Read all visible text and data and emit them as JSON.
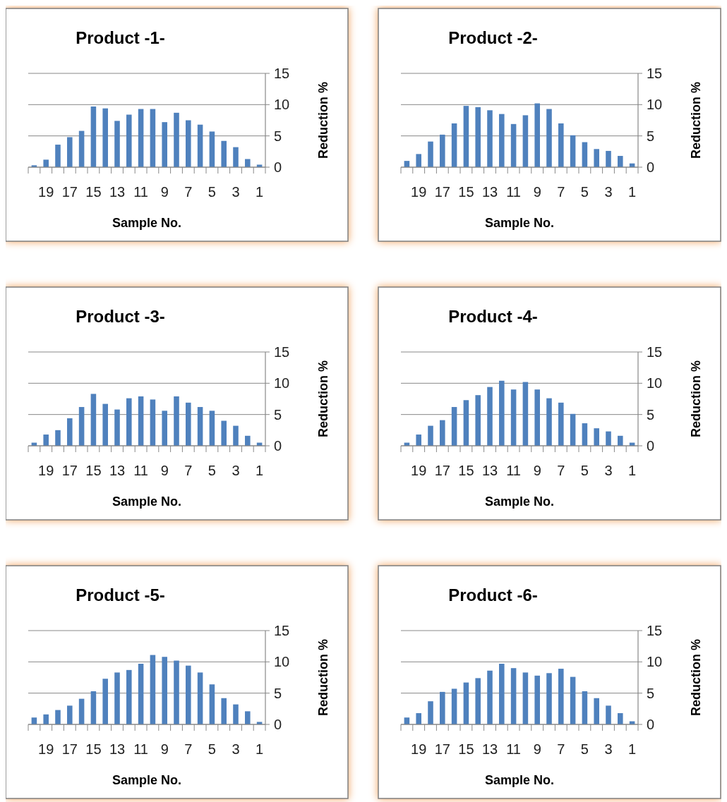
{
  "chart_data": [
    {
      "type": "bar",
      "title": "Product -1-",
      "xlabel": "Sample No.",
      "ylabel": "Reduction %",
      "categories": [
        null,
        "19",
        null,
        "17",
        null,
        "15",
        null,
        "13",
        null,
        "11",
        null,
        "9",
        null,
        "7",
        null,
        "5",
        null,
        "3",
        null,
        "1"
      ],
      "values": [
        0.3,
        1.2,
        3.6,
        4.8,
        5.8,
        9.7,
        9.4,
        7.4,
        8.4,
        9.3,
        9.3,
        7.2,
        8.7,
        7.5,
        6.8,
        5.7,
        4.2,
        3.2,
        1.3,
        0.4
      ],
      "color": "#4f81bd",
      "ylim": [
        0,
        15
      ],
      "yticks": [
        0,
        5,
        10,
        15
      ],
      "grid": "y"
    },
    {
      "type": "bar",
      "title": "Product -2-",
      "xlabel": "Sample No.",
      "ylabel": "Reduction %",
      "categories": [
        null,
        "19",
        null,
        "17",
        null,
        "15",
        null,
        "13",
        null,
        "11",
        null,
        "9",
        null,
        "7",
        null,
        "5",
        null,
        "3",
        null,
        "1"
      ],
      "values": [
        1.0,
        2.1,
        4.1,
        5.2,
        7.0,
        9.8,
        9.6,
        9.1,
        8.5,
        6.9,
        8.3,
        10.2,
        9.3,
        7.0,
        5.1,
        4.0,
        2.9,
        2.6,
        1.8,
        0.6
      ],
      "color": "#4f81bd",
      "ylim": [
        0,
        15
      ],
      "yticks": [
        0,
        5,
        10,
        15
      ],
      "grid": "y"
    },
    {
      "type": "bar",
      "title": "Product -3-",
      "xlabel": "Sample No.",
      "ylabel": "Reduction %",
      "categories": [
        null,
        "19",
        null,
        "17",
        null,
        "15",
        null,
        "13",
        null,
        "11",
        null,
        "9",
        null,
        "7",
        null,
        "5",
        null,
        "3",
        null,
        "1"
      ],
      "values": [
        0.5,
        1.8,
        2.5,
        4.4,
        6.2,
        8.3,
        6.7,
        5.8,
        7.6,
        7.9,
        7.4,
        5.6,
        7.9,
        6.9,
        6.2,
        5.6,
        4.0,
        3.2,
        1.6,
        0.5
      ],
      "color": "#4f81bd",
      "ylim": [
        0,
        15
      ],
      "yticks": [
        0,
        5,
        10,
        15
      ],
      "grid": "y"
    },
    {
      "type": "bar",
      "title": "Product -4-",
      "xlabel": "Sample No.",
      "ylabel": "Reduction %",
      "categories": [
        null,
        "19",
        null,
        "17",
        null,
        "15",
        null,
        "13",
        null,
        "11",
        null,
        "9",
        null,
        "7",
        null,
        "5",
        null,
        "3",
        null,
        "1"
      ],
      "values": [
        0.5,
        1.8,
        3.2,
        4.1,
        6.2,
        7.3,
        8.1,
        9.4,
        10.4,
        9.0,
        10.2,
        9.0,
        7.6,
        6.9,
        5.1,
        3.6,
        2.8,
        2.3,
        1.6,
        0.5
      ],
      "color": "#4f81bd",
      "ylim": [
        0,
        15
      ],
      "yticks": [
        0,
        5,
        10,
        15
      ],
      "grid": "y"
    },
    {
      "type": "bar",
      "title": "Product -5-",
      "xlabel": "Sample No.",
      "ylabel": "Reduction %",
      "categories": [
        null,
        "19",
        null,
        "17",
        null,
        "15",
        null,
        "13",
        null,
        "11",
        null,
        "9",
        null,
        "7",
        null,
        "5",
        null,
        "3",
        null,
        "1"
      ],
      "values": [
        1.1,
        1.6,
        2.3,
        3.0,
        4.1,
        5.3,
        7.3,
        8.3,
        8.7,
        9.7,
        11.1,
        10.8,
        10.2,
        9.4,
        8.3,
        6.4,
        4.2,
        3.2,
        2.1,
        0.4
      ],
      "color": "#4f81bd",
      "ylim": [
        0,
        15
      ],
      "yticks": [
        0,
        5,
        10,
        15
      ],
      "grid": "y"
    },
    {
      "type": "bar",
      "title": "Product -6-",
      "xlabel": "Sample No.",
      "ylabel": "Reduction %",
      "categories": [
        null,
        "19",
        null,
        "17",
        null,
        "15",
        null,
        "13",
        null,
        "11",
        null,
        "9",
        null,
        "7",
        null,
        "5",
        null,
        "3",
        null,
        "1"
      ],
      "values": [
        1.1,
        1.8,
        3.7,
        5.2,
        5.7,
        6.7,
        7.4,
        8.6,
        9.7,
        9.0,
        8.3,
        7.8,
        8.2,
        8.9,
        7.6,
        5.3,
        4.2,
        3.0,
        1.8,
        0.5
      ],
      "color": "#4f81bd",
      "ylim": [
        0,
        15
      ],
      "yticks": [
        0,
        5,
        10,
        15
      ],
      "grid": "y"
    }
  ]
}
